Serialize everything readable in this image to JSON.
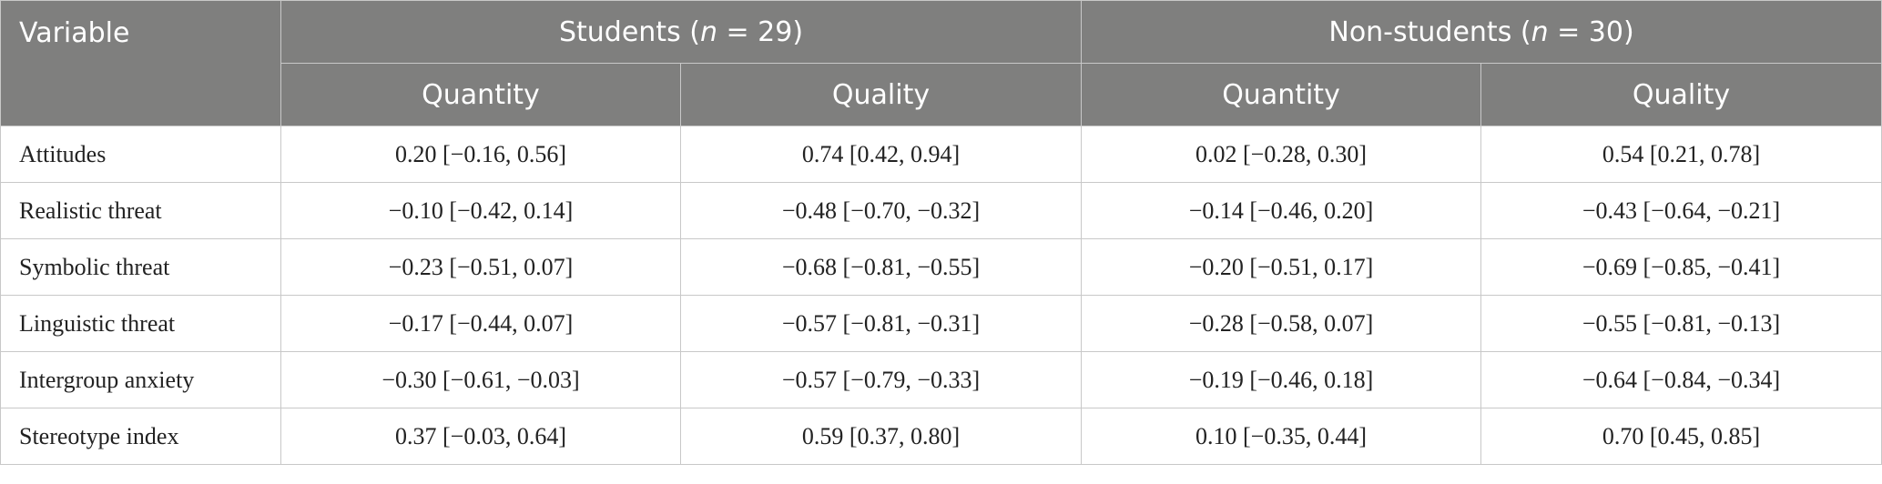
{
  "table": {
    "header": {
      "variable": "Variable",
      "groups": [
        {
          "runs": [
            "Students (",
            "n",
            " = 29)"
          ]
        },
        {
          "runs": [
            "Non-students (",
            "n",
            " = 30)"
          ]
        }
      ],
      "subheaders": [
        "Quantity",
        "Quality",
        "Quantity",
        "Quality"
      ]
    },
    "rows": [
      [
        "Attitudes",
        "0.20 [−0.16, 0.56]",
        "0.74 [0.42, 0.94]",
        "0.02 [−0.28, 0.30]",
        "0.54 [0.21, 0.78]"
      ],
      [
        "Realistic threat",
        "−0.10 [−0.42, 0.14]",
        "−0.48 [−0.70, −0.32]",
        "−0.14 [−0.46, 0.20]",
        "−0.43 [−0.64, −0.21]"
      ],
      [
        "Symbolic threat",
        "−0.23 [−0.51, 0.07]",
        "−0.68 [−0.81, −0.55]",
        "−0.20 [−0.51, 0.17]",
        "−0.69 [−0.85, −0.41]"
      ],
      [
        "Linguistic threat",
        "−0.17 [−0.44, 0.07]",
        "−0.57 [−0.81, −0.31]",
        "−0.28 [−0.58, 0.07]",
        "−0.55 [−0.81, −0.13]"
      ],
      [
        "Intergroup anxiety",
        "−0.30 [−0.61, −0.03]",
        "−0.57 [−0.79, −0.33]",
        "−0.19 [−0.46, 0.18]",
        "−0.64 [−0.84, −0.34]"
      ],
      [
        "Stereotype index",
        "0.37 [−0.03, 0.64]",
        "0.59 [0.37, 0.80]",
        "0.10 [−0.35, 0.44]",
        "0.70 [0.45, 0.85]"
      ]
    ]
  }
}
